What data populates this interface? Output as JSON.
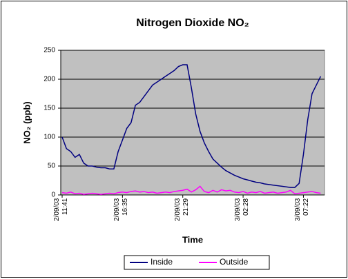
{
  "chart_data": {
    "type": "line",
    "title": "Nitrogen Dioxide NO₂",
    "x_label": "Time",
    "y_label": "NO₂ (ppb)",
    "categories": [
      "2/09/03\n11:41",
      null,
      null,
      null,
      null,
      null,
      null,
      null,
      null,
      null,
      null,
      null,
      null,
      null,
      "2/09/03\n16:35",
      null,
      null,
      null,
      null,
      null,
      null,
      null,
      null,
      null,
      null,
      null,
      null,
      null,
      "2/09/03\n21:29",
      null,
      null,
      null,
      null,
      null,
      null,
      null,
      null,
      null,
      null,
      null,
      null,
      null,
      "3/09/03\n02:28",
      null,
      null,
      null,
      null,
      null,
      null,
      null,
      null,
      null,
      null,
      null,
      null,
      null,
      "3/09/03\n07:22",
      null,
      null,
      null,
      null
    ],
    "series": [
      {
        "name": "Inside",
        "color": "#000080",
        "values": [
          100,
          80,
          75,
          65,
          70,
          55,
          50,
          50,
          48,
          47,
          47,
          45,
          45,
          75,
          95,
          115,
          125,
          155,
          160,
          170,
          180,
          190,
          195,
          200,
          205,
          210,
          215,
          222,
          225,
          225,
          185,
          140,
          110,
          90,
          75,
          62,
          55,
          48,
          42,
          38,
          34,
          31,
          28,
          26,
          24,
          22,
          21,
          19,
          18,
          17,
          16,
          15,
          14,
          13,
          13,
          20,
          70,
          130,
          175,
          190,
          205
        ]
      },
      {
        "name": "Outside",
        "color": "#ff00ff",
        "values": [
          4,
          3,
          5,
          2,
          3,
          1,
          2,
          3,
          2,
          1,
          2,
          3,
          2,
          4,
          5,
          4,
          6,
          7,
          5,
          6,
          4,
          5,
          3,
          4,
          5,
          4,
          6,
          7,
          8,
          10,
          5,
          9,
          15,
          6,
          4,
          8,
          5,
          9,
          7,
          8,
          5,
          4,
          6,
          3,
          5,
          4,
          6,
          3,
          4,
          5,
          3,
          4,
          5,
          8,
          2,
          3,
          4,
          5,
          6,
          4,
          3
        ]
      }
    ],
    "ylim": [
      0,
      250
    ],
    "yticks": [
      0,
      50,
      100,
      150,
      200,
      250
    ],
    "grid": true,
    "legend": "bottom"
  }
}
